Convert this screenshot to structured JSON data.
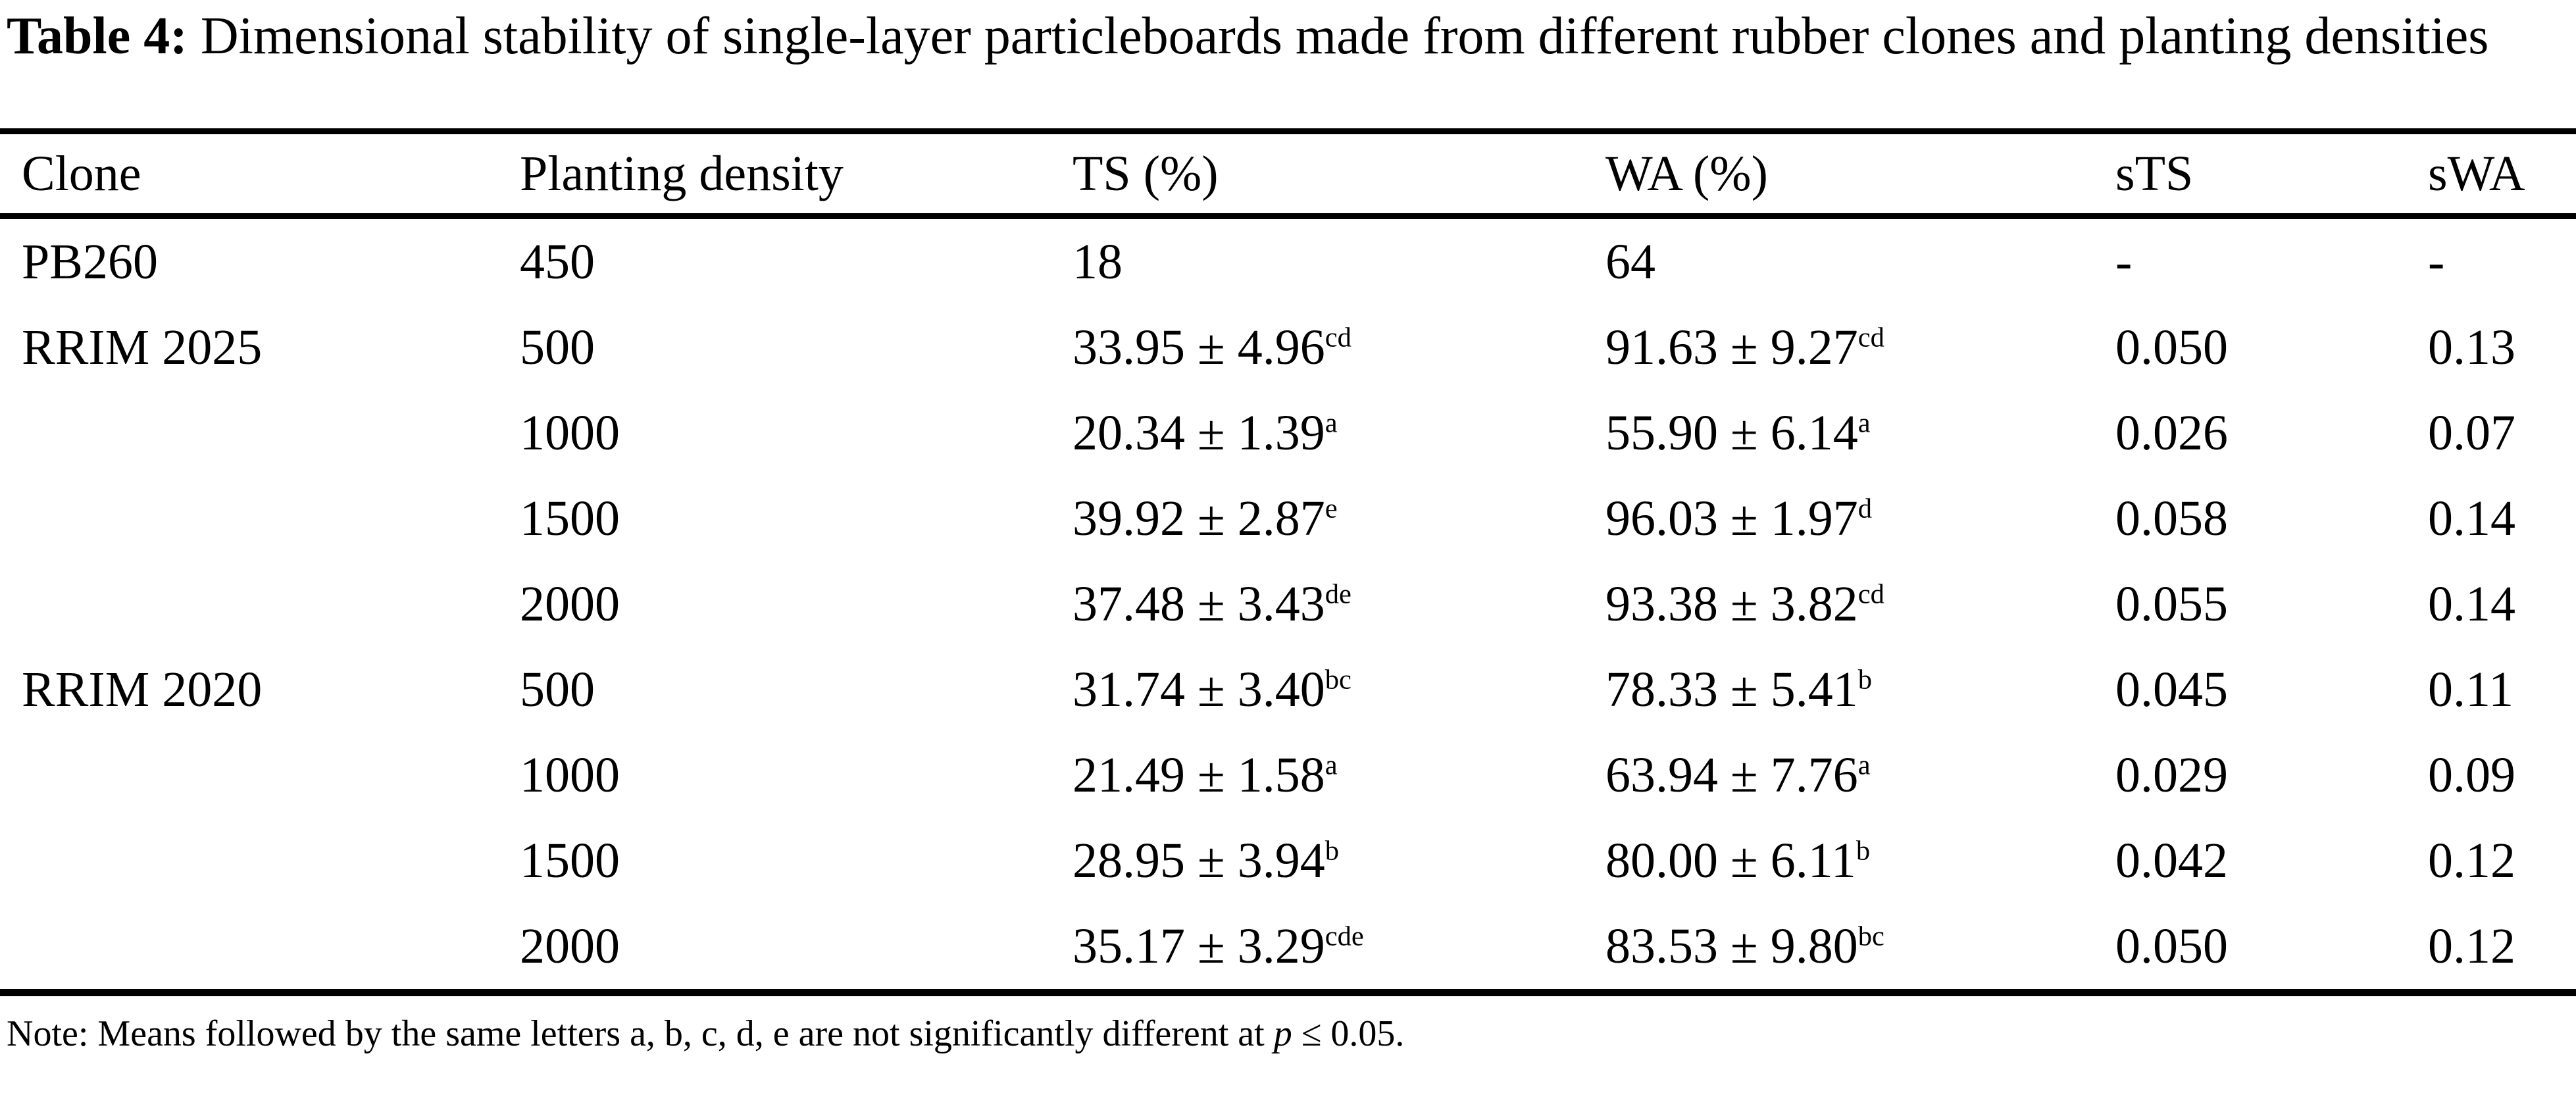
{
  "caption": {
    "label": "Table 4:",
    "text": "  Dimensional stability of single-layer particleboards made from different rubber clones and planting densities"
  },
  "table": {
    "columns": [
      "Clone",
      "Planting density",
      "TS (%)",
      "WA (%)",
      "sTS",
      "sWA"
    ],
    "rows": [
      {
        "clone": "PB260",
        "density": "450",
        "ts": "18",
        "ts_sup": "",
        "wa": "64",
        "wa_sup": "",
        "sts": "-",
        "swa": "-"
      },
      {
        "clone": "RRIM 2025",
        "density": "500",
        "ts": "33.95 ± 4.96",
        "ts_sup": "cd",
        "wa": "91.63 ± 9.27",
        "wa_sup": "cd",
        "sts": "0.050",
        "swa": "0.13"
      },
      {
        "clone": "",
        "density": "1000",
        "ts": "20.34 ± 1.39",
        "ts_sup": "a",
        "wa": "55.90 ± 6.14",
        "wa_sup": "a",
        "sts": "0.026",
        "swa": "0.07"
      },
      {
        "clone": "",
        "density": "1500",
        "ts": "39.92 ± 2.87",
        "ts_sup": "e",
        "wa": "96.03 ± 1.97",
        "wa_sup": "d",
        "sts": "0.058",
        "swa": "0.14"
      },
      {
        "clone": "",
        "density": "2000",
        "ts": "37.48 ± 3.43",
        "ts_sup": "de",
        "wa": "93.38 ± 3.82",
        "wa_sup": "cd",
        "sts": "0.055",
        "swa": "0.14"
      },
      {
        "clone": "RRIM 2020",
        "density": "500",
        "ts": "31.74 ± 3.40",
        "ts_sup": "bc",
        "wa": "78.33 ± 5.41",
        "wa_sup": "b",
        "sts": "0.045",
        "swa": "0.11"
      },
      {
        "clone": "",
        "density": "1000",
        "ts": "21.49 ± 1.58",
        "ts_sup": "a",
        "wa": "63.94 ± 7.76",
        "wa_sup": "a",
        "sts": "0.029",
        "swa": "0.09"
      },
      {
        "clone": "",
        "density": "1500",
        "ts": "28.95 ± 3.94",
        "ts_sup": "b",
        "wa": "80.00 ± 6.11",
        "wa_sup": "b",
        "sts": "0.042",
        "swa": "0.12"
      },
      {
        "clone": "",
        "density": "2000",
        "ts": "35.17 ± 3.29",
        "ts_sup": "cde",
        "wa": "83.53 ± 9.80",
        "wa_sup": "bc",
        "sts": "0.050",
        "swa": "0.12"
      }
    ]
  },
  "note": {
    "before_p": "Note: Means followed by the same letters a, b, c, d, e are not significantly different at ",
    "p": "p",
    "after_p": " ≤ 0.05."
  },
  "colors": {
    "text": "#000000",
    "background": "#ffffff",
    "rule": "#000000"
  }
}
